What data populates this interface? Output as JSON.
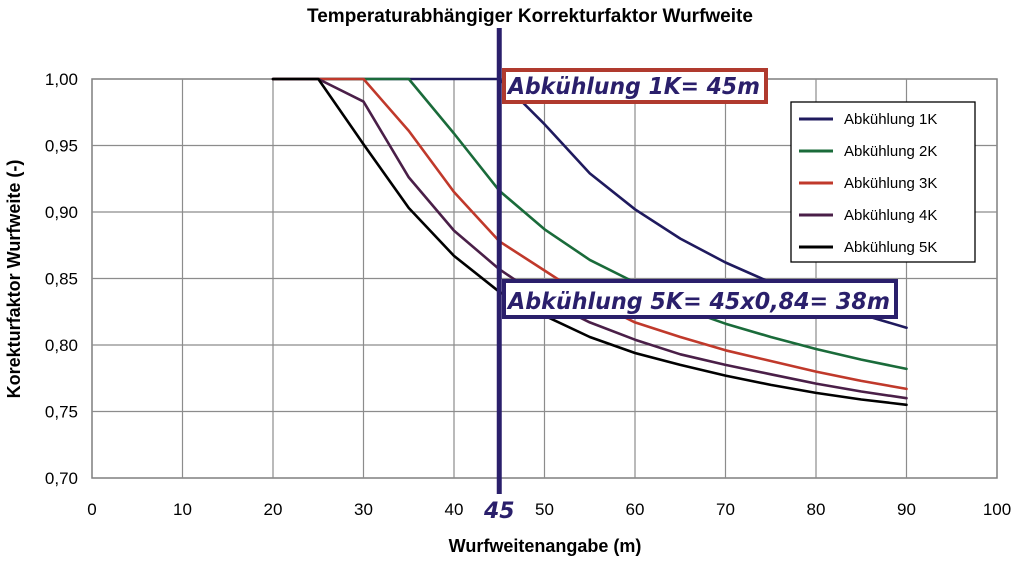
{
  "chart_data": {
    "type": "line",
    "title": "Temperaturabhängiger Korrekturfaktor Wurfweite",
    "xlabel": "Wurfweitenangabe (m)",
    "ylabel": "Korekturfaktor Wurfweite (-)",
    "xlim": [
      0,
      100
    ],
    "ylim": [
      0.7,
      1.0
    ],
    "xticks": [
      0,
      10,
      20,
      30,
      40,
      50,
      60,
      70,
      80,
      90,
      100
    ],
    "xtick_labels": [
      "0",
      "10",
      "20",
      "30",
      "40",
      "50",
      "60",
      "70",
      "80",
      "90",
      "100"
    ],
    "yticks": [
      1.0,
      0.95,
      0.9,
      0.85,
      0.8,
      0.75,
      0.7
    ],
    "ytick_labels": [
      "1,00",
      "0,95",
      "0,90",
      "0,85",
      "0,80",
      "0,75",
      "0,70"
    ],
    "grid": true,
    "legend_position": "right",
    "series": [
      {
        "name": "Abkühlung 1K",
        "color": "#1f1a5e",
        "x": [
          20,
          25,
          30,
          35,
          40,
          45,
          50,
          55,
          60,
          65,
          70,
          75,
          80,
          85,
          90
        ],
        "y": [
          1.0,
          1.0,
          1.0,
          1.0,
          1.0,
          1.0,
          0.966,
          0.929,
          0.902,
          0.88,
          0.862,
          0.847,
          0.834,
          0.823,
          0.813
        ]
      },
      {
        "name": "Abkühlung 2K",
        "color": "#1a6b3a",
        "x": [
          20,
          25,
          30,
          35,
          40,
          45,
          50,
          55,
          60,
          65,
          70,
          75,
          80,
          85,
          90
        ],
        "y": [
          1.0,
          1.0,
          1.0,
          1.0,
          0.959,
          0.916,
          0.887,
          0.864,
          0.847,
          0.828,
          0.816,
          0.806,
          0.797,
          0.789,
          0.782
        ]
      },
      {
        "name": "Abkühlung 3K",
        "color": "#c0392b",
        "x": [
          20,
          25,
          30,
          35,
          40,
          45,
          50,
          55,
          60,
          65,
          70,
          75,
          80,
          85,
          90
        ],
        "y": [
          1.0,
          1.0,
          1.0,
          0.961,
          0.915,
          0.878,
          0.856,
          0.834,
          0.817,
          0.806,
          0.796,
          0.788,
          0.78,
          0.773,
          0.767
        ]
      },
      {
        "name": "Abkühlung 4K",
        "color": "#4a1f48",
        "x": [
          20,
          25,
          30,
          35,
          40,
          45,
          50,
          55,
          60,
          65,
          70,
          75,
          80,
          85,
          90
        ],
        "y": [
          1.0,
          1.0,
          0.983,
          0.926,
          0.886,
          0.857,
          0.834,
          0.817,
          0.804,
          0.793,
          0.785,
          0.778,
          0.771,
          0.765,
          0.76
        ]
      },
      {
        "name": "Abkühlung 5K",
        "color": "#000000",
        "x": [
          20,
          25,
          30,
          35,
          40,
          45,
          50,
          55,
          60,
          65,
          70,
          75,
          80,
          85,
          90
        ],
        "y": [
          1.0,
          1.0,
          0.951,
          0.903,
          0.867,
          0.84,
          0.822,
          0.806,
          0.794,
          0.785,
          0.777,
          0.77,
          0.764,
          0.759,
          0.755
        ]
      }
    ],
    "marker_line": {
      "x": 45,
      "label": "45",
      "color": "#2a1f6b"
    },
    "annotations": [
      {
        "text": "Abkühlung 1K= 45m",
        "anchor_x": 45,
        "anchor_y": 0.99,
        "text_color": "#2a1f6b",
        "border_color": "#b03a2e"
      },
      {
        "text": "Abkühlung 5K= 45x0,84= 38m",
        "anchor_x": 45,
        "anchor_y": 0.835,
        "text_color": "#2a1f6b",
        "border_color": "#2a1f6b"
      }
    ]
  }
}
